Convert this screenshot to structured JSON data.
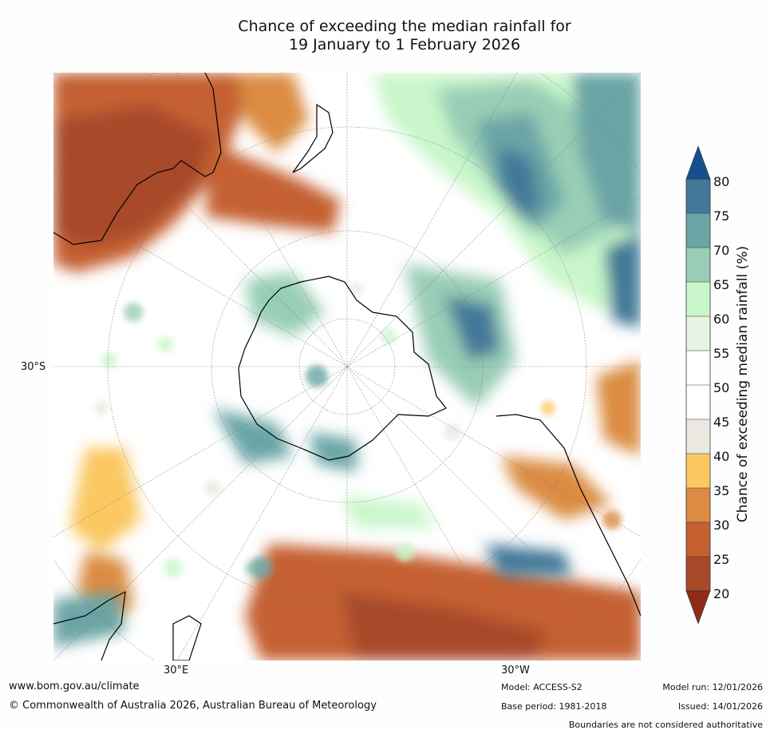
{
  "title_line1": "Chance of exceeding the median rainfall for",
  "title_line2": "19 January to 1 February 2026",
  "axis_labels": {
    "left_lat": "30°S",
    "bottom_east": "30°E",
    "bottom_west": "30°W"
  },
  "colorbar": {
    "title": "Chance of exceeding median rainfall (%)",
    "ticks": [
      "20",
      "25",
      "30",
      "35",
      "40",
      "45",
      "50",
      "55",
      "60",
      "65",
      "70",
      "75",
      "80"
    ],
    "colors": {
      "below20": "#8c2d16",
      "c20_25": "#a84a2a",
      "c25_30": "#c56131",
      "c30_35": "#db8c42",
      "c35_40": "#fbc862",
      "c40_45": "#ebe8e2",
      "c45_50": "#ffffff",
      "c50_55": "#ffffff",
      "c55_60": "#e8f4e4",
      "c60_65": "#c9f7cb",
      "c65_70": "#99cdb6",
      "c70_75": "#6aa5a6",
      "c75_80": "#427998",
      "above80": "#16508c"
    }
  },
  "footer": {
    "website": "www.bom.gov.au/climate",
    "copyright": "© Commonwealth of Australia 2026, Australian Bureau of Meteorology",
    "model": "Model: ACCESS-S2",
    "base_period": "Base period: 1981-2018",
    "model_run": "Model run: 12/01/2026",
    "issued": "Issued: 14/01/2026",
    "disclaimer": "Boundaries are not considered authoritative"
  }
}
